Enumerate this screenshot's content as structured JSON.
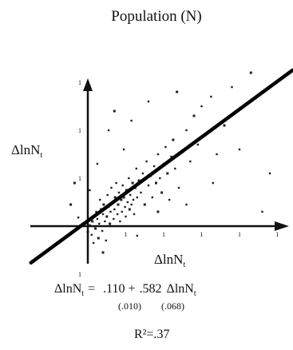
{
  "chart_data": {
    "type": "scatter",
    "title": "Population (N)",
    "ylabel": {
      "text": "ΔlnN",
      "sub": "t"
    },
    "xlabel": {
      "text": "ΔlnN",
      "sub": "t"
    },
    "xlim": [
      -0.6,
      5.1
    ],
    "ylim": [
      -0.9,
      3.7
    ],
    "x_ticks": [
      "1",
      "1",
      "1",
      "1",
      "1",
      "1"
    ],
    "y_ticks": [
      "1",
      "1",
      "1",
      "1",
      "1"
    ],
    "fit_line": {
      "intercept": 0.11,
      "slope": 0.582
    },
    "equation": {
      "lhs": "ΔlnN",
      "lhs_sub": "t",
      "equals": "=",
      "intercept": ".110",
      "plus": "+",
      "slope": ".582",
      "rhs": "ΔlnN",
      "rhs_sub": "t",
      "intercept_se": "(.010)",
      "slope_se": "(.068)"
    },
    "r_squared": "R²=.37",
    "points": [
      {
        "x": -0.45,
        "y": 0.45
      },
      {
        "x": -0.25,
        "y": 0.18
      },
      {
        "x": -0.15,
        "y": 0.05
      },
      {
        "x": 0.0,
        "y": -0.12
      },
      {
        "x": 0.05,
        "y": 0.02
      },
      {
        "x": 0.1,
        "y": -0.18
      },
      {
        "x": 0.12,
        "y": 0.1
      },
      {
        "x": 0.15,
        "y": -0.35
      },
      {
        "x": 0.18,
        "y": 0.22
      },
      {
        "x": 0.2,
        "y": -0.05
      },
      {
        "x": 0.22,
        "y": 0.3
      },
      {
        "x": 0.25,
        "y": 0.15
      },
      {
        "x": 0.28,
        "y": -0.25
      },
      {
        "x": 0.3,
        "y": 0.05
      },
      {
        "x": 0.32,
        "y": 0.55
      },
      {
        "x": 0.35,
        "y": 0.35
      },
      {
        "x": 0.38,
        "y": -0.1
      },
      {
        "x": 0.4,
        "y": 0.25
      },
      {
        "x": 0.42,
        "y": 0.45
      },
      {
        "x": 0.45,
        "y": 0.1
      },
      {
        "x": 0.48,
        "y": -0.3
      },
      {
        "x": 0.5,
        "y": 0.2
      },
      {
        "x": 0.52,
        "y": 0.65
      },
      {
        "x": 0.55,
        "y": 0.4
      },
      {
        "x": 0.58,
        "y": 0.05
      },
      {
        "x": 0.6,
        "y": 0.3
      },
      {
        "x": 0.62,
        "y": 0.8
      },
      {
        "x": 0.65,
        "y": 0.5
      },
      {
        "x": 0.68,
        "y": 0.15
      },
      {
        "x": 0.7,
        "y": 0.35
      },
      {
        "x": 0.72,
        "y": 0.6
      },
      {
        "x": 0.75,
        "y": 0.9
      },
      {
        "x": 0.78,
        "y": 0.25
      },
      {
        "x": 0.8,
        "y": 0.45
      },
      {
        "x": 0.82,
        "y": 0.7
      },
      {
        "x": 0.85,
        "y": 0.1
      },
      {
        "x": 0.88,
        "y": 0.55
      },
      {
        "x": 0.9,
        "y": 0.3
      },
      {
        "x": 0.92,
        "y": 0.85
      },
      {
        "x": 0.95,
        "y": 0.6
      },
      {
        "x": 0.98,
        "y": 0.4
      },
      {
        "x": 1.0,
        "y": 0.2
      },
      {
        "x": 1.02,
        "y": 0.75
      },
      {
        "x": 1.05,
        "y": 0.5
      },
      {
        "x": 1.08,
        "y": 1.0
      },
      {
        "x": 1.1,
        "y": 0.35
      },
      {
        "x": 1.12,
        "y": 0.65
      },
      {
        "x": 1.15,
        "y": 0.45
      },
      {
        "x": 1.18,
        "y": 0.9
      },
      {
        "x": 1.2,
        "y": 0.55
      },
      {
        "x": 1.22,
        "y": 0.25
      },
      {
        "x": 1.25,
        "y": 0.8
      },
      {
        "x": 1.28,
        "y": 1.2
      },
      {
        "x": 1.3,
        "y": 0.6
      },
      {
        "x": 1.35,
        "y": 0.95
      },
      {
        "x": 1.4,
        "y": 0.7
      },
      {
        "x": 1.45,
        "y": 1.1
      },
      {
        "x": 1.5,
        "y": 0.45
      },
      {
        "x": 1.55,
        "y": 1.35
      },
      {
        "x": 1.6,
        "y": 0.85
      },
      {
        "x": 1.65,
        "y": 1.05
      },
      {
        "x": 1.7,
        "y": 0.6
      },
      {
        "x": 1.75,
        "y": 1.25
      },
      {
        "x": 1.8,
        "y": 0.9
      },
      {
        "x": 1.85,
        "y": 1.5
      },
      {
        "x": 1.9,
        "y": 1.0
      },
      {
        "x": 1.95,
        "y": 0.7
      },
      {
        "x": 2.0,
        "y": 1.3
      },
      {
        "x": 2.05,
        "y": 1.65
      },
      {
        "x": 2.1,
        "y": 1.1
      },
      {
        "x": 2.15,
        "y": 0.55
      },
      {
        "x": 2.2,
        "y": 1.45
      },
      {
        "x": 2.25,
        "y": 1.8
      },
      {
        "x": 2.3,
        "y": 1.2
      },
      {
        "x": 2.4,
        "y": 0.8
      },
      {
        "x": 2.5,
        "y": 1.55
      },
      {
        "x": 2.6,
        "y": 2.0
      },
      {
        "x": 2.7,
        "y": 1.35
      },
      {
        "x": 2.8,
        "y": 2.3
      },
      {
        "x": 2.9,
        "y": 1.7
      },
      {
        "x": 3.0,
        "y": 2.5
      },
      {
        "x": 3.1,
        "y": 1.9
      },
      {
        "x": 3.25,
        "y": 2.7
      },
      {
        "x": 3.4,
        "y": 1.5
      },
      {
        "x": 3.6,
        "y": 2.1
      },
      {
        "x": 3.8,
        "y": 2.9
      },
      {
        "x": 4.0,
        "y": 1.6
      },
      {
        "x": 4.3,
        "y": 3.2
      },
      {
        "x": 4.8,
        "y": 1.1
      },
      {
        "x": 0.55,
        "y": 2.0
      },
      {
        "x": 0.7,
        "y": 2.4
      },
      {
        "x": 1.15,
        "y": 2.2
      },
      {
        "x": 1.6,
        "y": 2.6
      },
      {
        "x": 2.35,
        "y": 2.8
      },
      {
        "x": 0.95,
        "y": 1.6
      },
      {
        "x": 0.25,
        "y": 1.3
      },
      {
        "x": 1.85,
        "y": 0.3
      },
      {
        "x": 2.6,
        "y": 0.45
      },
      {
        "x": 3.3,
        "y": 0.9
      },
      {
        "x": 0.4,
        "y": -0.55
      },
      {
        "x": 1.3,
        "y": -0.2
      },
      {
        "x": 4.6,
        "y": 0.3
      },
      {
        "x": -0.35,
        "y": 0.9
      },
      {
        "x": 0.05,
        "y": 0.75
      }
    ]
  }
}
